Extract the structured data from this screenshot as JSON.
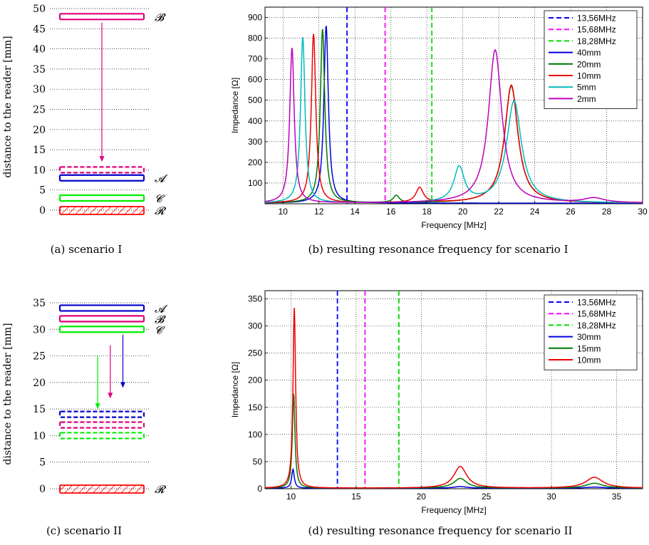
{
  "chart_data": [
    {
      "id": "a",
      "type": "diagram",
      "caption": "(a) scenario I",
      "ylabel": "distance to the reader [mm]",
      "ylim": [
        0,
        50
      ],
      "yticks": [
        "0",
        "5",
        "10",
        "15",
        "20",
        "25",
        "30",
        "35",
        "40",
        "45",
        "50"
      ],
      "grid": true,
      "colors": {
        "A": "#0000cc",
        "B": "#e0007a",
        "C": "#00ee00",
        "R": "#ff0000"
      },
      "tags": [
        {
          "label": "𝓑",
          "y": 48,
          "color": "#e0007a",
          "style": "solid"
        },
        {
          "label": "",
          "y": 10,
          "color": "#e0007a",
          "style": "dashed"
        },
        {
          "label": "𝓐",
          "y": 8,
          "color": "#0000cc",
          "style": "solid"
        },
        {
          "label": "𝓒",
          "y": 3,
          "color": "#00ee00",
          "style": "solid"
        },
        {
          "label": "𝓡",
          "y": 0,
          "color": "#ff0000",
          "style": "hatched"
        }
      ],
      "arrows": [
        {
          "from": 46.5,
          "to": 12,
          "color": "#e0007a"
        }
      ]
    },
    {
      "id": "b",
      "type": "line",
      "caption": "(b) resulting resonance frequency for scenario I",
      "xlabel": "Frequency [MHz]",
      "ylabel": "Impedance [Ω]",
      "xlim": [
        9,
        30
      ],
      "ylim": [
        0,
        950
      ],
      "xticks": [
        10,
        12,
        14,
        16,
        18,
        20,
        22,
        24,
        26,
        28,
        30
      ],
      "yticks": [
        100,
        200,
        300,
        400,
        500,
        600,
        700,
        800,
        900
      ],
      "grid": true,
      "legend_position": "top-right",
      "vlines": [
        {
          "name": "13,56MHz",
          "x": 13.56,
          "color": "#0000ff"
        },
        {
          "name": "15,68MHz",
          "x": 15.68,
          "color": "#ff00ff"
        },
        {
          "name": "18,28MHz",
          "x": 18.28,
          "color": "#00dd00"
        }
      ],
      "series": [
        {
          "name": "40mm",
          "color": "#0000dd",
          "baseline": 3,
          "peaks": [
            {
              "f": 12.4,
              "h": 858,
              "w": 0.15
            }
          ]
        },
        {
          "name": "20mm",
          "color": "#007700",
          "baseline": 3,
          "peaks": [
            {
              "f": 12.2,
              "h": 840,
              "w": 0.15
            },
            {
              "f": 16.3,
              "h": 35,
              "w": 0.2
            },
            {
              "f": 22.7,
              "h": 565,
              "w": 0.45
            }
          ]
        },
        {
          "name": "10mm",
          "color": "#ee0000",
          "baseline": 3,
          "peaks": [
            {
              "f": 11.7,
              "h": 818,
              "w": 0.15
            },
            {
              "f": 17.6,
              "h": 72,
              "w": 0.25
            },
            {
              "f": 22.7,
              "h": 570,
              "w": 0.45
            }
          ]
        },
        {
          "name": "5mm",
          "color": "#00bbbb",
          "baseline": 3,
          "peaks": [
            {
              "f": 11.1,
              "h": 800,
              "w": 0.15
            },
            {
              "f": 19.8,
              "h": 168,
              "w": 0.35
            },
            {
              "f": 22.85,
              "h": 492,
              "w": 0.5
            }
          ]
        },
        {
          "name": "2mm",
          "color": "#bb00bb",
          "baseline": 3,
          "peaks": [
            {
              "f": 10.5,
              "h": 750,
              "w": 0.15
            },
            {
              "f": 21.8,
              "h": 740,
              "w": 0.45
            },
            {
              "f": 27.3,
              "h": 22,
              "w": 0.7
            }
          ]
        }
      ]
    },
    {
      "id": "c",
      "type": "diagram",
      "caption": "(c) scenario II",
      "ylabel": "distance to the reader [mm]",
      "ylim": [
        0,
        35
      ],
      "yticks": [
        "0",
        "5",
        "10",
        "15",
        "20",
        "25",
        "30",
        "35"
      ],
      "grid": true,
      "tags": [
        {
          "label": "𝓐",
          "y": 34,
          "color": "#0000cc",
          "style": "solid"
        },
        {
          "label": "𝓑",
          "y": 32,
          "color": "#e0007a",
          "style": "solid"
        },
        {
          "label": "𝓒",
          "y": 30,
          "color": "#00ee00",
          "style": "solid"
        },
        {
          "label": "",
          "y": 14,
          "color": "#0000cc",
          "style": "dashed"
        },
        {
          "label": "",
          "y": 12,
          "color": "#e0007a",
          "style": "dashed"
        },
        {
          "label": "",
          "y": 10,
          "color": "#00ee00",
          "style": "dashed"
        },
        {
          "label": "𝓡",
          "y": 0,
          "color": "#ff0000",
          "style": "hatched"
        }
      ],
      "arrows": [
        {
          "from": 25,
          "to": 15,
          "color": "#00ee00",
          "xfrac": 0.45
        },
        {
          "from": 27,
          "to": 17,
          "color": "#e0007a",
          "xfrac": 0.6
        },
        {
          "from": 29,
          "to": 19,
          "color": "#0000cc",
          "xfrac": 0.75
        }
      ]
    },
    {
      "id": "d",
      "type": "line",
      "caption": "(d) resulting resonance frequency for scenario II",
      "xlabel": "Frequency [MHz]",
      "ylabel": "Impedance [Ω]",
      "xlim": [
        8,
        37
      ],
      "ylim": [
        0,
        365
      ],
      "xticks": [
        10,
        15,
        20,
        25,
        30,
        35
      ],
      "yticks": [
        0,
        50,
        100,
        150,
        200,
        250,
        300,
        350
      ],
      "grid": true,
      "legend_position": "top-right",
      "vlines": [
        {
          "name": "13,56MHz",
          "x": 13.56,
          "color": "#0000ff"
        },
        {
          "name": "15,68MHz",
          "x": 15.68,
          "color": "#ff00ff"
        },
        {
          "name": "18,28MHz",
          "x": 18.28,
          "color": "#00dd00"
        }
      ],
      "series": [
        {
          "name": "30mm",
          "color": "#0000dd",
          "baseline": 1,
          "peaks": [
            {
              "f": 10.15,
              "h": 35,
              "w": 0.12
            },
            {
              "f": 23.0,
              "h": 3,
              "w": 0.6
            },
            {
              "f": 33.3,
              "h": 2,
              "w": 0.8
            }
          ]
        },
        {
          "name": "15mm",
          "color": "#007700",
          "baseline": 1,
          "peaks": [
            {
              "f": 10.2,
              "h": 175,
              "w": 0.12
            },
            {
              "f": 23.0,
              "h": 18,
              "w": 0.6
            },
            {
              "f": 33.3,
              "h": 9,
              "w": 0.8
            }
          ]
        },
        {
          "name": "10mm",
          "color": "#ee0000",
          "baseline": 1,
          "peaks": [
            {
              "f": 10.25,
              "h": 333,
              "w": 0.12
            },
            {
              "f": 23.0,
              "h": 40,
              "w": 0.6
            },
            {
              "f": 33.3,
              "h": 20,
              "w": 0.8
            }
          ]
        }
      ]
    }
  ]
}
